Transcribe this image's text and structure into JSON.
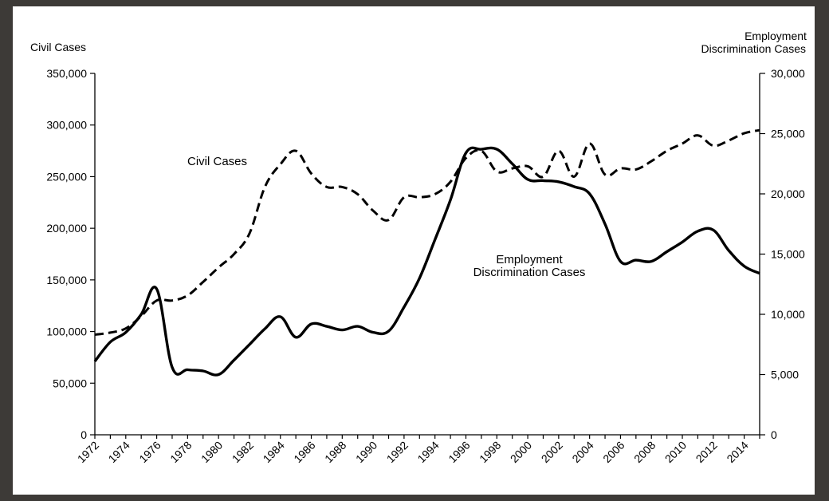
{
  "chart_data": {
    "type": "line",
    "title": "",
    "left_axis": {
      "label": "Civil Cases",
      "ylim": [
        0,
        350000
      ],
      "ticks": [
        0,
        50000,
        100000,
        150000,
        200000,
        250000,
        300000,
        350000
      ],
      "tick_labels": [
        "0",
        "50,000",
        "100,000",
        "150,000",
        "200,000",
        "250,000",
        "300,000",
        "350,000"
      ]
    },
    "right_axis": {
      "label_lines": [
        "Employment",
        "Discrimination Cases"
      ],
      "ylim": [
        0,
        30000
      ],
      "ticks": [
        0,
        5000,
        10000,
        15000,
        20000,
        25000,
        30000
      ],
      "tick_labels": [
        "0",
        "5,000",
        "10,000",
        "15,000",
        "20,000",
        "25,000",
        "30,000"
      ]
    },
    "x_axis": {
      "range": [
        1972,
        2015
      ],
      "tick_labels": [
        "1972",
        "1974",
        "1976",
        "1978",
        "1980",
        "1982",
        "1984",
        "1986",
        "1988",
        "1990",
        "1992",
        "1994",
        "1996",
        "1998",
        "2000",
        "2002",
        "2004",
        "2006",
        "2008",
        "2010",
        "2012",
        "2014"
      ]
    },
    "grid": false,
    "legend": "none",
    "annotations": [
      {
        "lines": [
          "Civil Cases"
        ],
        "series": "civil"
      },
      {
        "lines": [
          "Employment",
          "Discrimination Cases"
        ],
        "series": "employment"
      }
    ],
    "series": [
      {
        "id": "civil",
        "axis": "left",
        "style": "dashed",
        "x": [
          1972,
          1973,
          1974,
          1975,
          1976,
          1977,
          1978,
          1979,
          1980,
          1981,
          1982,
          1983,
          1984,
          1985,
          1986,
          1987,
          1988,
          1989,
          1990,
          1991,
          1992,
          1993,
          1994,
          1995,
          1996,
          1997,
          1998,
          1999,
          2000,
          2001,
          2002,
          2003,
          2004,
          2005,
          2006,
          2007,
          2008,
          2009,
          2010,
          2011,
          2012,
          2013,
          2014,
          2015
        ],
        "values": [
          97000,
          99000,
          103000,
          115000,
          130000,
          130000,
          135000,
          148000,
          162000,
          175000,
          195000,
          240000,
          262000,
          275000,
          253000,
          240000,
          240000,
          233000,
          217000,
          208000,
          230000,
          230000,
          233000,
          245000,
          268000,
          275000,
          255000,
          258000,
          260000,
          250000,
          275000,
          250000,
          282000,
          252000,
          258000,
          257000,
          265000,
          275000,
          282000,
          290000,
          280000,
          285000,
          292000,
          295000
        ]
      },
      {
        "id": "employment",
        "axis": "right",
        "style": "solid",
        "x": [
          1972,
          1973,
          1974,
          1975,
          1976,
          1977,
          1978,
          1979,
          1980,
          1981,
          1982,
          1983,
          1984,
          1985,
          1986,
          1987,
          1988,
          1989,
          1990,
          1991,
          1992,
          1993,
          1994,
          1995,
          1996,
          1997,
          1998,
          1999,
          2000,
          2001,
          2002,
          2003,
          2004,
          2005,
          2006,
          2007,
          2008,
          2009,
          2010,
          2011,
          2012,
          2013,
          2014,
          2015
        ],
        "values": [
          6100,
          7700,
          8500,
          10000,
          12100,
          5600,
          5400,
          5300,
          5000,
          6200,
          7500,
          8800,
          9800,
          8100,
          9200,
          9000,
          8700,
          9000,
          8500,
          8600,
          10600,
          13000,
          16200,
          19500,
          23400,
          23700,
          23700,
          22500,
          21200,
          21100,
          21000,
          20600,
          20000,
          17500,
          14400,
          14500,
          14400,
          15200,
          16000,
          16900,
          17000,
          15300,
          14000,
          13400
        ]
      }
    ]
  }
}
